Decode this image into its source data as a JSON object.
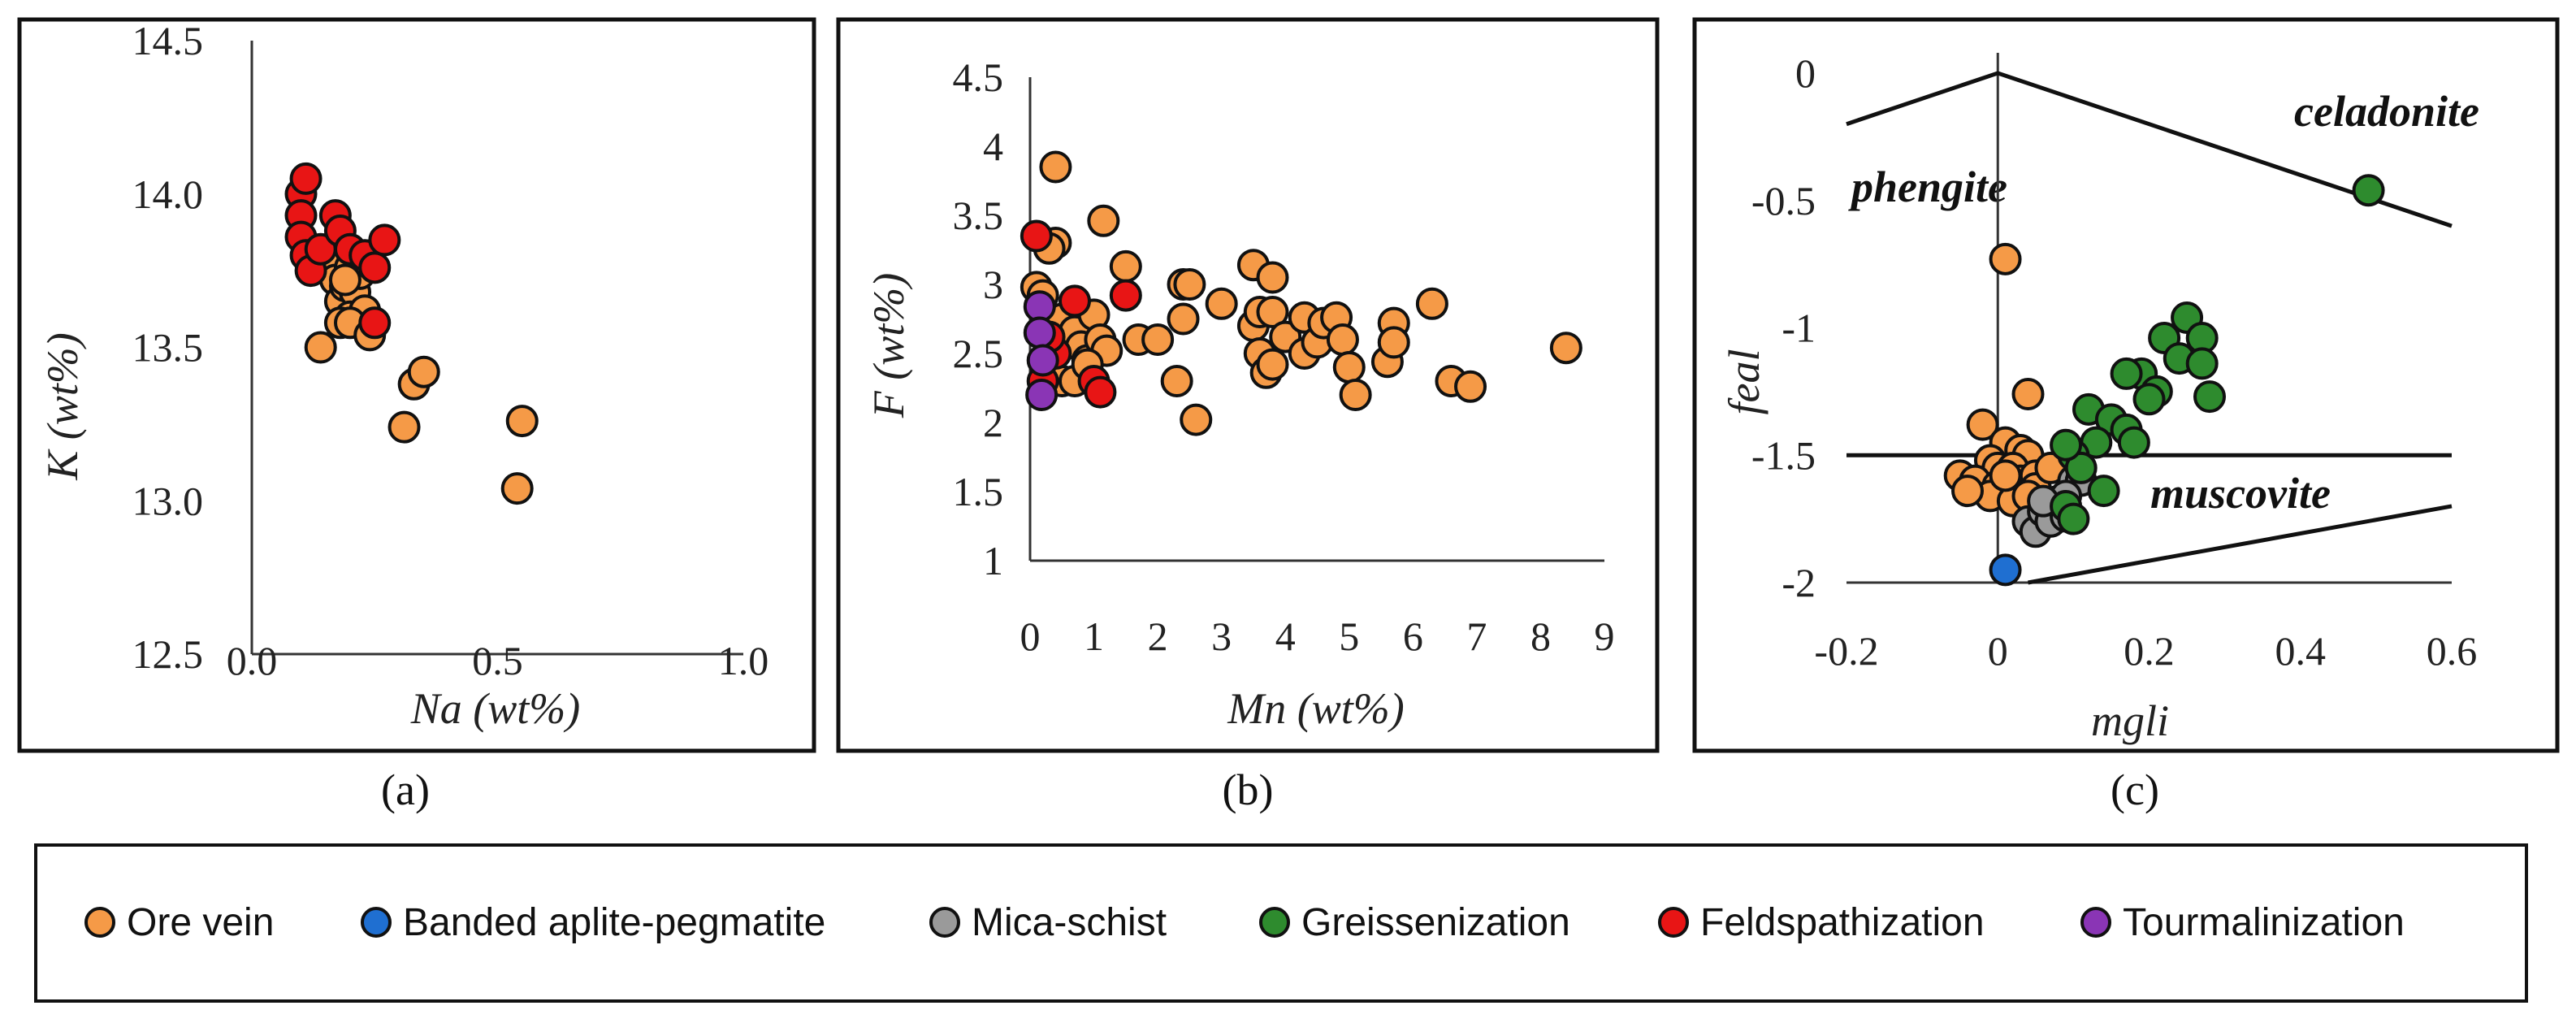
{
  "colors": {
    "Ore vein": "#f59a47",
    "Banded aplite-pegmatite": "#1f6fd1",
    "Mica-schist": "#9a9a9a",
    "Greissenization": "#2e8b2e",
    "Feldspathization": "#e81515",
    "Tourmalinization": "#8a35b5"
  },
  "legend": {
    "items": [
      "Ore vein",
      "Banded aplite-pegmatite",
      "Mica-schist",
      "Greissenization",
      "Feldspathization",
      "Tourmalinization"
    ]
  },
  "chart_data": [
    {
      "type": "scatter",
      "panel_label": "(a)",
      "title": "",
      "xlabel": "Na (wt%)",
      "ylabel": "K (wt%)",
      "xlim": [
        0.0,
        1.0
      ],
      "ylim": [
        12.5,
        14.5
      ],
      "xticks": [
        "0.0",
        "0.5",
        "1.0"
      ],
      "yticks": [
        "12.5",
        "13.0",
        "13.5",
        "14.0",
        "14.5"
      ],
      "series": [
        {
          "name": "Ore vein",
          "points": [
            [
              0.16,
              13.8
            ],
            [
              0.17,
              13.72
            ],
            [
              0.18,
              13.65
            ],
            [
              0.19,
              13.7
            ],
            [
              0.2,
              13.76
            ],
            [
              0.21,
              13.68
            ],
            [
              0.22,
              13.74
            ],
            [
              0.2,
              13.6
            ],
            [
              0.23,
              13.62
            ],
            [
              0.18,
              13.58
            ],
            [
              0.2,
              13.58
            ],
            [
              0.24,
              13.54
            ],
            [
              0.14,
              13.5
            ],
            [
              0.19,
              13.72
            ],
            [
              0.31,
              13.24
            ],
            [
              0.33,
              13.38
            ],
            [
              0.35,
              13.42
            ],
            [
              0.54,
              13.04
            ],
            [
              0.55,
              13.26
            ]
          ]
        },
        {
          "name": "Feldspathization",
          "points": [
            [
              0.1,
              14.0
            ],
            [
              0.11,
              14.05
            ],
            [
              0.1,
              13.93
            ],
            [
              0.1,
              13.86
            ],
            [
              0.11,
              13.8
            ],
            [
              0.12,
              13.75
            ],
            [
              0.14,
              13.82
            ],
            [
              0.17,
              13.93
            ],
            [
              0.18,
              13.88
            ],
            [
              0.2,
              13.82
            ],
            [
              0.23,
              13.8
            ],
            [
              0.25,
              13.76
            ],
            [
              0.27,
              13.85
            ],
            [
              0.25,
              13.58
            ]
          ]
        }
      ]
    },
    {
      "type": "scatter",
      "panel_label": "(b)",
      "title": "",
      "xlabel": "Mn (wt%)",
      "ylabel": "F (wt%)",
      "xlim": [
        0,
        9
      ],
      "ylim": [
        1,
        4.5
      ],
      "xticks": [
        "0",
        "1",
        "2",
        "3",
        "4",
        "5",
        "6",
        "7",
        "8",
        "9"
      ],
      "yticks": [
        "1",
        "1.5",
        "2",
        "2.5",
        "3",
        "3.5",
        "4",
        "4.5"
      ],
      "series": [
        {
          "name": "Ore vein",
          "points": [
            [
              0.4,
              3.85
            ],
            [
              0.4,
              3.3
            ],
            [
              0.3,
              3.26
            ],
            [
              1.15,
              3.46
            ],
            [
              0.1,
              2.98
            ],
            [
              0.2,
              2.92
            ],
            [
              0.3,
              2.7
            ],
            [
              0.5,
              2.75
            ],
            [
              0.6,
              2.6
            ],
            [
              0.7,
              2.66
            ],
            [
              0.8,
              2.55
            ],
            [
              0.9,
              2.45
            ],
            [
              1.0,
              2.78
            ],
            [
              1.1,
              2.6
            ],
            [
              1.2,
              2.52
            ],
            [
              0.5,
              2.3
            ],
            [
              0.7,
              2.3
            ],
            [
              0.9,
              2.42
            ],
            [
              1.5,
              3.13
            ],
            [
              1.7,
              2.6
            ],
            [
              2.0,
              2.6
            ],
            [
              2.3,
              2.3
            ],
            [
              2.4,
              3.0
            ],
            [
              2.4,
              2.75
            ],
            [
              2.5,
              3.0
            ],
            [
              2.6,
              2.02
            ],
            [
              3.0,
              2.86
            ],
            [
              3.5,
              3.14
            ],
            [
              3.5,
              2.7
            ],
            [
              3.6,
              2.8
            ],
            [
              3.6,
              2.5
            ],
            [
              3.7,
              2.36
            ],
            [
              3.8,
              3.05
            ],
            [
              3.8,
              2.8
            ],
            [
              3.8,
              2.42
            ],
            [
              4.0,
              2.62
            ],
            [
              4.3,
              2.76
            ],
            [
              4.3,
              2.5
            ],
            [
              4.5,
              2.58
            ],
            [
              4.6,
              2.72
            ],
            [
              4.8,
              2.76
            ],
            [
              4.9,
              2.6
            ],
            [
              5.0,
              2.4
            ],
            [
              5.1,
              2.2
            ],
            [
              5.6,
              2.44
            ],
            [
              5.7,
              2.72
            ],
            [
              5.7,
              2.58
            ],
            [
              6.3,
              2.86
            ],
            [
              6.6,
              2.3
            ],
            [
              6.9,
              2.26
            ],
            [
              8.4,
              2.54
            ]
          ]
        },
        {
          "name": "Feldspathization",
          "points": [
            [
              0.1,
              3.35
            ],
            [
              0.7,
              2.88
            ],
            [
              1.5,
              2.92
            ],
            [
              0.4,
              2.5
            ],
            [
              0.2,
              2.3
            ],
            [
              1.0,
              2.3
            ],
            [
              1.1,
              2.22
            ],
            [
              0.3,
              2.62
            ]
          ]
        },
        {
          "name": "Tourmalinization",
          "points": [
            [
              0.15,
              2.84
            ],
            [
              0.15,
              2.65
            ],
            [
              0.2,
              2.45
            ],
            [
              0.18,
              2.2
            ]
          ]
        }
      ]
    },
    {
      "type": "scatter",
      "panel_label": "(c)",
      "title": "",
      "xlabel": "mgli",
      "ylabel": "feal",
      "xlim": [
        -0.2,
        0.6
      ],
      "ylim": [
        -2,
        0
      ],
      "xticks": [
        "-0.2",
        "0",
        "0.2",
        "0.4",
        "0.6"
      ],
      "yticks": [
        "0",
        "-0.5",
        "-1",
        "-1.5",
        "-2"
      ],
      "annotations": [
        "phengite",
        "celadonite",
        "muscovite"
      ],
      "boundaries": [
        {
          "x": [
            -0.2,
            0.0,
            0.6
          ],
          "y": [
            -0.2,
            0.0,
            -0.6
          ]
        },
        {
          "x": [
            -0.2,
            0.6
          ],
          "y": [
            -1.5,
            -1.5
          ]
        },
        {
          "x": [
            0.04,
            0.6
          ],
          "y": [
            -2.0,
            -1.7
          ]
        }
      ],
      "series": [
        {
          "name": "Ore vein",
          "points": [
            [
              0.01,
              -0.73
            ],
            [
              0.04,
              -1.26
            ],
            [
              -0.02,
              -1.38
            ],
            [
              0.01,
              -1.45
            ],
            [
              0.03,
              -1.48
            ],
            [
              0.04,
              -1.5
            ],
            [
              -0.01,
              -1.52
            ],
            [
              0.0,
              -1.55
            ],
            [
              0.02,
              -1.55
            ],
            [
              -0.05,
              -1.58
            ],
            [
              -0.03,
              -1.6
            ],
            [
              0.0,
              -1.62
            ],
            [
              0.03,
              -1.6
            ],
            [
              0.05,
              -1.58
            ],
            [
              -0.01,
              -1.66
            ],
            [
              0.02,
              -1.68
            ],
            [
              0.05,
              -1.63
            ],
            [
              0.07,
              -1.55
            ],
            [
              -0.04,
              -1.64
            ],
            [
              0.01,
              -1.58
            ],
            [
              0.04,
              -1.66
            ]
          ]
        },
        {
          "name": "Banded aplite-pegmatite",
          "points": [
            [
              0.01,
              -1.95
            ]
          ]
        },
        {
          "name": "Mica-schist",
          "points": [
            [
              0.04,
              -1.76
            ],
            [
              0.05,
              -1.8
            ],
            [
              0.06,
              -1.72
            ],
            [
              0.07,
              -1.76
            ],
            [
              0.08,
              -1.68
            ],
            [
              0.09,
              -1.74
            ],
            [
              0.1,
              -1.6
            ],
            [
              0.11,
              -1.6
            ],
            [
              0.09,
              -1.66
            ],
            [
              0.06,
              -1.68
            ]
          ]
        },
        {
          "name": "Greissenization",
          "points": [
            [
              0.49,
              -0.46
            ],
            [
              0.25,
              -0.96
            ],
            [
              0.22,
              -1.04
            ],
            [
              0.27,
              -1.04
            ],
            [
              0.24,
              -1.12
            ],
            [
              0.27,
              -1.14
            ],
            [
              0.19,
              -1.18
            ],
            [
              0.17,
              -1.18
            ],
            [
              0.21,
              -1.25
            ],
            [
              0.2,
              -1.28
            ],
            [
              0.28,
              -1.27
            ],
            [
              0.12,
              -1.32
            ],
            [
              0.15,
              -1.36
            ],
            [
              0.13,
              -1.45
            ],
            [
              0.17,
              -1.4
            ],
            [
              0.1,
              -1.5
            ],
            [
              0.11,
              -1.55
            ],
            [
              0.14,
              -1.64
            ],
            [
              0.09,
              -1.7
            ],
            [
              0.1,
              -1.75
            ],
            [
              0.18,
              -1.45
            ],
            [
              0.09,
              -1.46
            ]
          ]
        }
      ]
    }
  ]
}
